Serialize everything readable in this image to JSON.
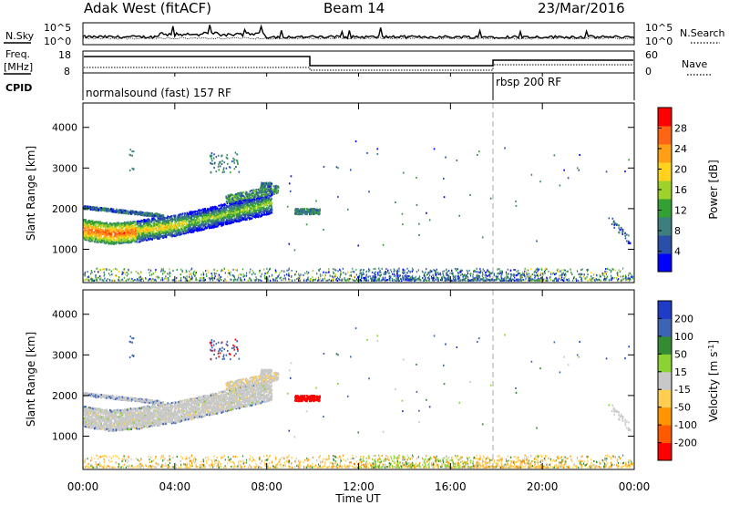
{
  "header": {
    "radar": "Adak West (fitACF)",
    "beam": "Beam 14",
    "date": "23/Mar/2016"
  },
  "labels": {
    "nsky": "N.Sky",
    "nsearch": "N.Search",
    "freq": "Freq.",
    "mhz": "[MHz]",
    "nave": "Nave",
    "cpid": "CPID",
    "exp1": "normalsound (fast) 157 RF",
    "exp2": "rbsp 200 RF"
  },
  "noise_axis": {
    "ticks": [
      "10^5",
      "10^0"
    ]
  },
  "freq_axis": {
    "left_ticks": [
      "18",
      "8"
    ],
    "right_ticks": [
      "60",
      "0"
    ]
  },
  "colors": {
    "power": [
      "#0000ff",
      "#2a4fa8",
      "#3d7f7f",
      "#33a033",
      "#9cd22a",
      "#ffd21e",
      "#ffa014",
      "#ff6414",
      "#ff0000"
    ],
    "velocity": [
      "#ff0000",
      "#ff5a00",
      "#ff9600",
      "#ffcd50",
      "#c8c8c8",
      "#8cd232",
      "#328c32",
      "#3c64b4",
      "#1e3cc8"
    ]
  },
  "chart_data": [
    {
      "type": "heatmap",
      "quantity": "Power",
      "ylabel": "Slant Range [km]",
      "ylim": [
        180,
        4600
      ],
      "y_ticks": [
        "1000",
        "2000",
        "3000",
        "4000"
      ],
      "colorbar_label": "Power [dB]",
      "colorbar_ticks": [
        "4",
        "8",
        "12",
        "16",
        "20",
        "24",
        "28"
      ],
      "colorbar_range": [
        0,
        32
      ]
    },
    {
      "type": "heatmap",
      "quantity": "Velocity",
      "ylabel": "Slant Range [km]",
      "ylim": [
        180,
        4600
      ],
      "y_ticks": [
        "1000",
        "2000",
        "3000",
        "4000"
      ],
      "colorbar_label": "Velocity [m s^-1]",
      "colorbar_ticks": [
        "-200",
        "-100",
        "-50",
        "-15",
        "15",
        "50",
        "100",
        "200"
      ]
    }
  ],
  "time_axis": {
    "xlabel": "Time UT",
    "xlim": [
      0,
      24
    ],
    "ticks": [
      "00:00",
      "04:00",
      "08:00",
      "12:00",
      "16:00",
      "20:00",
      "00:00"
    ],
    "mode_change_hour": 18
  }
}
